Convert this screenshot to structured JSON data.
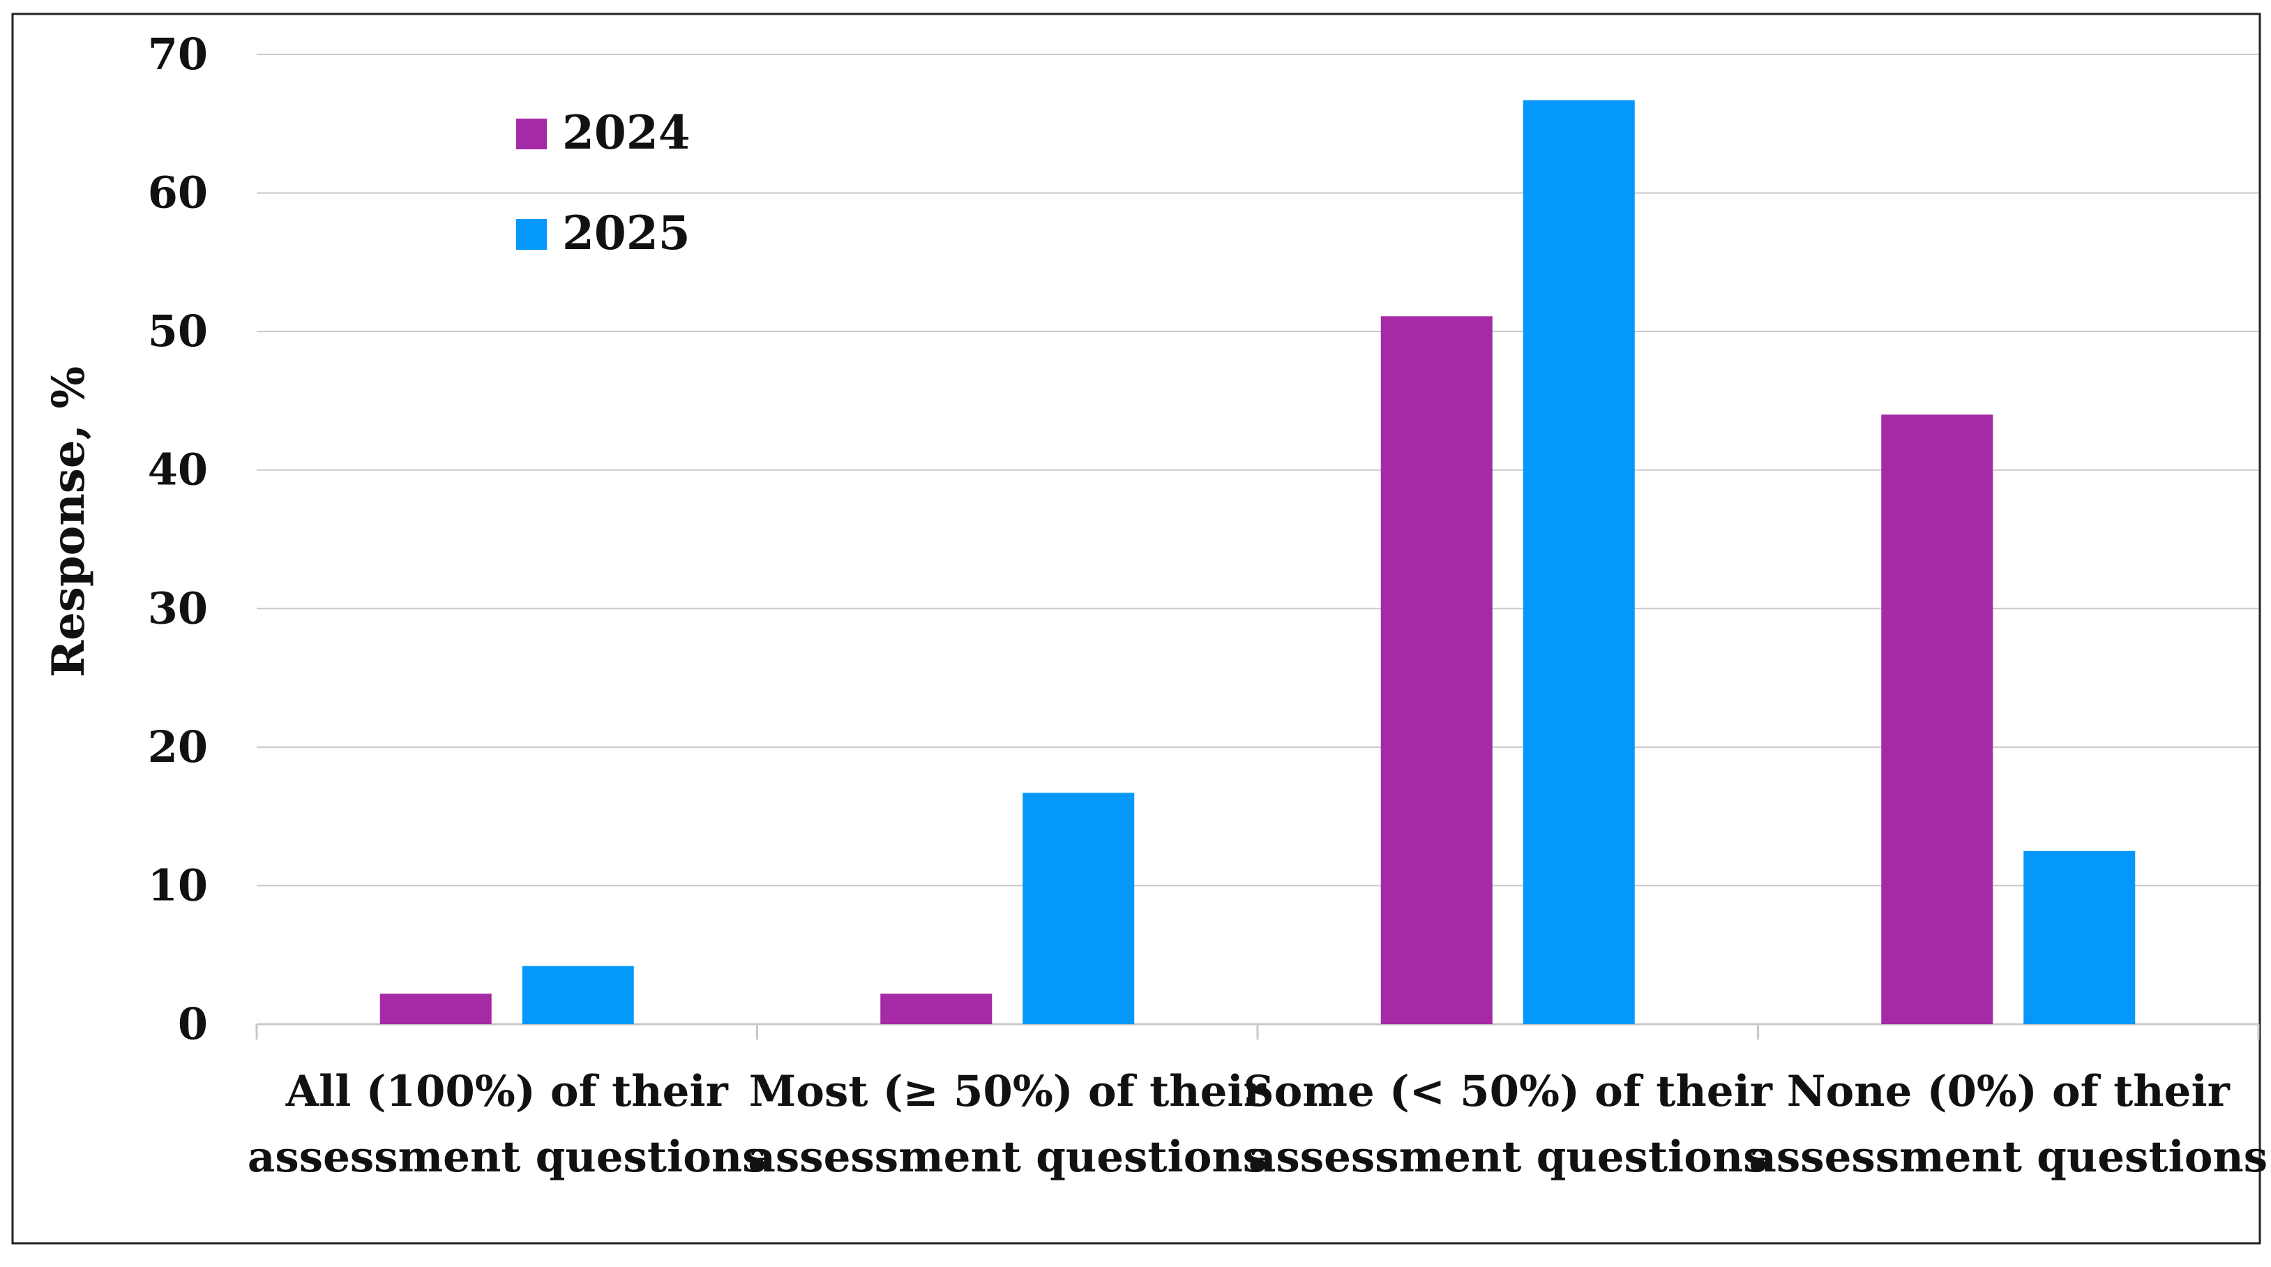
{
  "chart_data": {
    "type": "bar",
    "title": "",
    "xlabel": "",
    "ylabel": "Response, %",
    "ylim": [
      0,
      70
    ],
    "yticks": [
      0,
      10,
      20,
      30,
      40,
      50,
      60,
      70
    ],
    "grid": true,
    "legend_position": "top-left",
    "categories": [
      [
        "All (100%) of their",
        "assessment questions"
      ],
      [
        "Most (≥ 50%) of their",
        "assessment questions"
      ],
      [
        "Some (< 50%) of their",
        "assessment questions"
      ],
      [
        "None (0%) of their",
        "assessment questions"
      ]
    ],
    "series": [
      {
        "name": "2024",
        "color": "#A52AA5",
        "values": [
          2.2,
          2.2,
          51.1,
          44.0
        ]
      },
      {
        "name": "2025",
        "color": "#0398FA",
        "values": [
          4.2,
          16.7,
          66.7,
          12.5
        ]
      }
    ]
  }
}
